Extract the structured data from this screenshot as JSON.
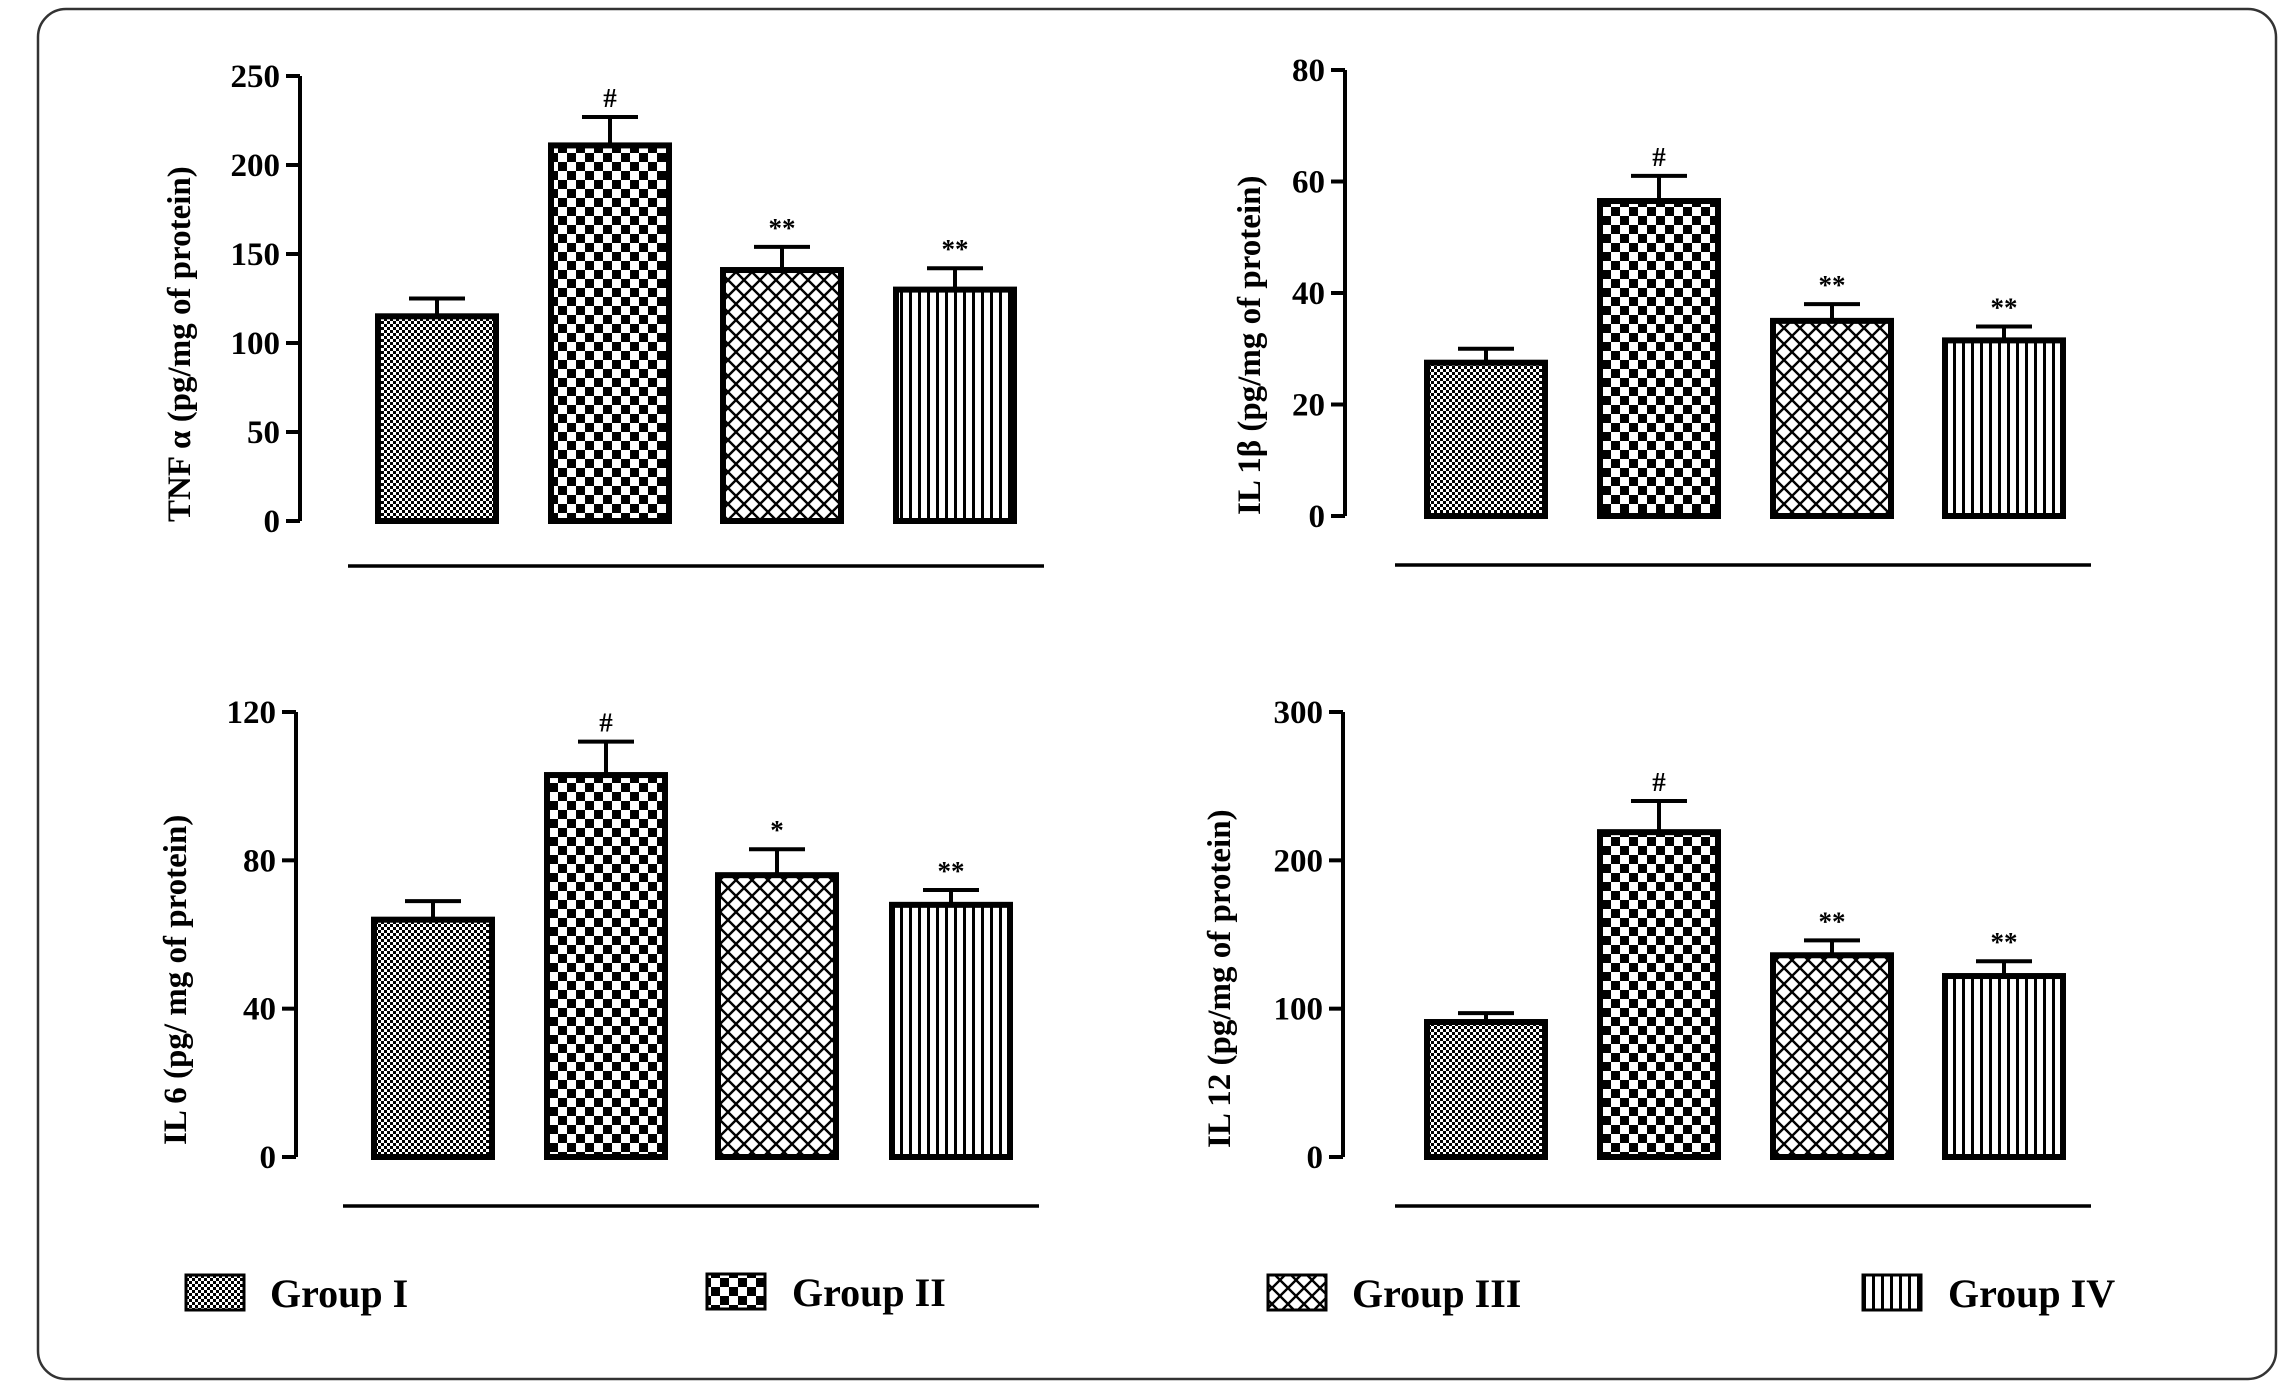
{
  "figure": {
    "legend": [
      {
        "label": "Group I",
        "pattern": "fine-check"
      },
      {
        "label": "Group II",
        "pattern": "checker"
      },
      {
        "label": "Group III",
        "pattern": "crosshatch"
      },
      {
        "label": "Group IV",
        "pattern": "vertical-lines"
      }
    ]
  },
  "chart_data": [
    {
      "type": "bar",
      "title": "",
      "categories": [
        "Group I",
        "Group II",
        "Group III",
        "Group IV"
      ],
      "values": [
        115,
        211,
        141,
        130
      ],
      "errors": [
        10,
        16,
        13,
        12
      ],
      "significance": [
        "",
        "#",
        "**",
        "**"
      ],
      "ylabel": "TNF α (pg/mg of protein)",
      "ylim": [
        0,
        250
      ],
      "yticks": [
        0,
        50,
        100,
        150,
        200,
        250
      ]
    },
    {
      "type": "bar",
      "title": "",
      "categories": [
        "Group I",
        "Group II",
        "Group III",
        "Group IV"
      ],
      "values": [
        27.5,
        56.5,
        35,
        31.5
      ],
      "errors": [
        2.5,
        4.5,
        3,
        2.5
      ],
      "significance": [
        "",
        "#",
        "**",
        "**"
      ],
      "ylabel": "IL 1β (pg/mg of protein)",
      "ylim": [
        0,
        80
      ],
      "yticks": [
        0,
        20,
        40,
        60,
        80
      ]
    },
    {
      "type": "bar",
      "title": "",
      "categories": [
        "Group I",
        "Group II",
        "Group III",
        "Group IV"
      ],
      "values": [
        64,
        103,
        76,
        68
      ],
      "errors": [
        5,
        9,
        7,
        4
      ],
      "significance": [
        "",
        "#",
        "*",
        "**"
      ],
      "ylabel": "IL 6 (pg/ mg of protein)",
      "ylim": [
        0,
        120
      ],
      "yticks": [
        0,
        40,
        80,
        120
      ]
    },
    {
      "type": "bar",
      "title": "",
      "categories": [
        "Group I",
        "Group II",
        "Group III",
        "Group IV"
      ],
      "values": [
        91,
        219,
        136,
        122
      ],
      "errors": [
        6,
        21,
        10,
        10
      ],
      "significance": [
        "",
        "#",
        "**",
        "**"
      ],
      "ylabel": "IL 12 (pg/mg of protein)",
      "ylim": [
        0,
        300
      ],
      "yticks": [
        0,
        100,
        200,
        300
      ]
    }
  ]
}
